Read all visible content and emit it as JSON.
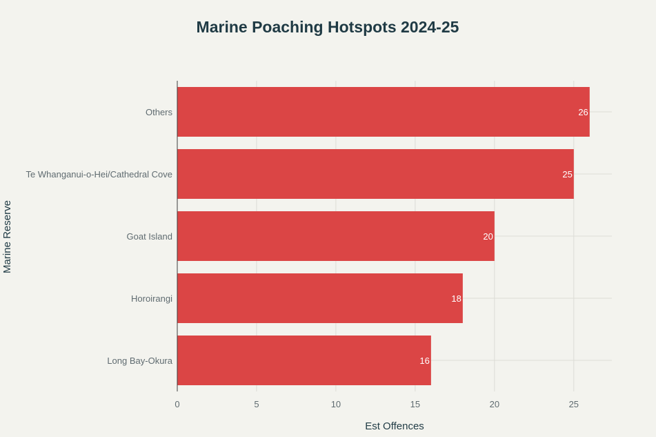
{
  "chart_data": {
    "type": "bar",
    "orientation": "horizontal",
    "title": "Marine Poaching Hotspots 2024-25",
    "xlabel": "Est Offences",
    "ylabel": "Marine Reserve",
    "categories": [
      "Others",
      "Te Whanganui-o-Hei/Cathedral Cove",
      "Goat Island",
      "Horoirangi",
      "Long Bay-Okura"
    ],
    "values": [
      26,
      25,
      20,
      18,
      16
    ],
    "data_labels": [
      "26",
      "25",
      "20",
      "18",
      "16"
    ],
    "xlim": [
      0,
      27.4
    ],
    "xticks": [
      0,
      5,
      10,
      15,
      20,
      25
    ],
    "xtick_labels": [
      "0",
      "5",
      "10",
      "15",
      "20",
      "25"
    ],
    "grid": true,
    "legend": "none",
    "colors": {
      "bar": "#db4545",
      "background": "#f3f3ee",
      "title": "#1f3a44",
      "tick_text": "#5f6b70",
      "grid": "#dcdcd6"
    }
  }
}
